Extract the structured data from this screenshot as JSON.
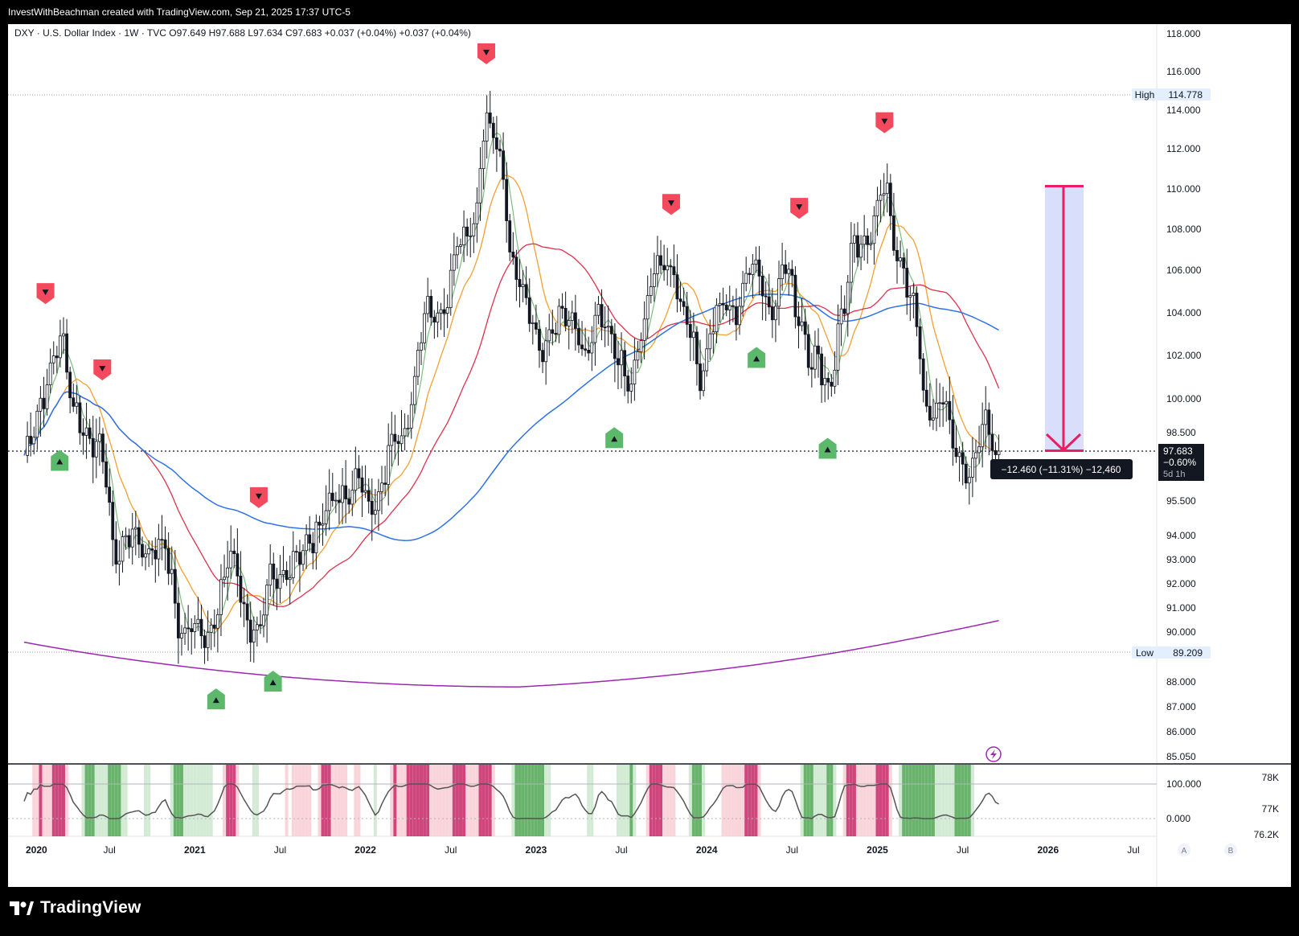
{
  "header": {
    "attribution": "InvestWithBeachman created with TradingView.com, Sep 21, 2025 17:37 UTC-5"
  },
  "legend": {
    "text": "DXY · U.S. Dollar Index · 1W · TVC  O97.649  H97.688  L97.634  C97.683  +0.037 (+0.04%)  +0.037 (+0.04%)"
  },
  "price_axis": {
    "labels": [
      "118.000",
      "116.000",
      "114.000",
      "112.000",
      "110.000",
      "108.000",
      "106.000",
      "104.000",
      "102.000",
      "100.000",
      "98.500",
      "95.500",
      "94.000",
      "93.000",
      "92.000",
      "91.000",
      "90.000",
      "88.000",
      "87.000",
      "86.000",
      "85.050"
    ]
  },
  "high_marker": {
    "label": "High",
    "value": "114.778"
  },
  "low_marker": {
    "label": "Low",
    "value": "89.209"
  },
  "last_price": {
    "value": "97.683",
    "change": "−0.60%",
    "countdown": "5d 1h"
  },
  "measure": {
    "label": "−12.460 (−11.31%) −12,460"
  },
  "oscillator_axis": {
    "labels": [
      "100.000",
      "0.000"
    ]
  },
  "volume_axis": {
    "labels": [
      "78K",
      "77K",
      "76.2K"
    ]
  },
  "time_axis": {
    "labels": [
      "2020",
      "Jul",
      "2021",
      "Jul",
      "2022",
      "Jul",
      "2023",
      "Jul",
      "2024",
      "Jul",
      "2025",
      "Jul",
      "2026",
      "Jul"
    ]
  },
  "axis_buttons": {
    "auto": "A",
    "log": "B"
  },
  "footer": {
    "brand": "TradingView"
  },
  "colors": {
    "up_signal": "#5cb86b",
    "down_signal": "#f2495c",
    "ma_green": "#7cbf7c",
    "ma_orange": "#f5a033",
    "ma_red": "#e0314b",
    "ma_blue": "#2e73e6",
    "ma_purple": "#9c27b0",
    "measure": "#e91e63"
  },
  "chart_data": {
    "type": "candlestick",
    "title": "DXY · U.S. Dollar Index · 1W · TVC",
    "timeframe": "1W",
    "ohlc_last": {
      "open": 97.649,
      "high": 97.688,
      "low": 97.634,
      "close": 97.683
    },
    "x_range": [
      "2020-01",
      "2026-09"
    ],
    "y_range": [
      85.05,
      118.0
    ],
    "y_scale": "log",
    "anchors": [
      [
        "2020-01",
        97.5
      ],
      [
        "2020-03",
        102.5
      ],
      [
        "2020-04",
        99.7
      ],
      [
        "2020-06",
        97.2
      ],
      [
        "2020-07",
        93.5
      ],
      [
        "2020-09",
        93.8
      ],
      [
        "2020-10",
        93.4
      ],
      [
        "2020-12",
        90.0
      ],
      [
        "2021-01",
        89.9
      ],
      [
        "2021-02",
        90.9
      ],
      [
        "2021-03",
        92.8
      ],
      [
        "2021-05",
        89.8
      ],
      [
        "2021-06",
        92.4
      ],
      [
        "2021-07",
        92.4
      ],
      [
        "2021-09",
        94.3
      ],
      [
        "2021-11",
        96.0
      ],
      [
        "2021-12",
        96.0
      ],
      [
        "2022-01",
        95.5
      ],
      [
        "2022-03",
        98.5
      ],
      [
        "2022-05",
        104.0
      ],
      [
        "2022-06",
        104.5
      ],
      [
        "2022-07",
        107.0
      ],
      [
        "2022-08",
        108.5
      ],
      [
        "2022-09",
        113.0
      ],
      [
        "2022-10",
        111.5
      ],
      [
        "2022-11",
        106.0
      ],
      [
        "2022-12",
        104.0
      ],
      [
        "2023-01",
        102.5
      ],
      [
        "2023-03",
        104.0
      ],
      [
        "2023-04",
        101.5
      ],
      [
        "2023-05",
        104.0
      ],
      [
        "2023-07",
        100.5
      ],
      [
        "2023-08",
        103.5
      ],
      [
        "2023-09",
        106.0
      ],
      [
        "2023-10",
        106.5
      ],
      [
        "2023-11",
        103.5
      ],
      [
        "2023-12",
        101.5
      ],
      [
        "2024-01",
        103.5
      ],
      [
        "2024-02",
        104.2
      ],
      [
        "2024-04",
        106.0
      ],
      [
        "2024-05",
        104.5
      ],
      [
        "2024-06",
        105.8
      ],
      [
        "2024-07",
        104.2
      ],
      [
        "2024-08",
        101.5
      ],
      [
        "2024-09",
        100.7
      ],
      [
        "2024-10",
        104.0
      ],
      [
        "2024-11",
        107.0
      ],
      [
        "2025-01",
        109.5
      ],
      [
        "2025-02",
        107.0
      ],
      [
        "2025-03",
        104.0
      ],
      [
        "2025-04",
        99.5
      ],
      [
        "2025-05",
        100.0
      ],
      [
        "2025-06",
        97.5
      ],
      [
        "2025-07",
        97.0
      ],
      [
        "2025-08",
        98.5
      ],
      [
        "2025-09",
        97.683
      ]
    ],
    "moving_averages": [
      "green (short)",
      "orange",
      "red",
      "blue",
      "purple (long)"
    ],
    "buy_signals": [
      "2020-03",
      "2021-02",
      "2021-06",
      "2023-06",
      "2024-04",
      "2024-09"
    ],
    "sell_signals": [
      "2020-02",
      "2020-06",
      "2021-05",
      "2022-09",
      "2023-10",
      "2024-07",
      "2025-01"
    ],
    "range_high": 114.778,
    "range_low": 89.209,
    "measurement": {
      "from": 110.143,
      "to": 97.683,
      "change": -12.46,
      "change_pct": -11.31
    },
    "oscillator_axis": {
      "top": 100.0,
      "bottom": 0.0
    },
    "volume_axis": [
      "78K",
      "77K",
      "76.2K"
    ]
  }
}
